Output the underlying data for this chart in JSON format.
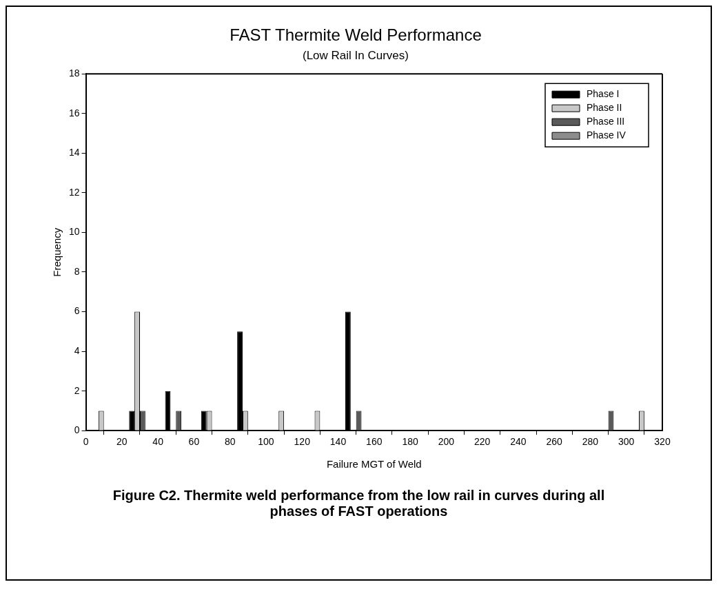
{
  "chart_data": {
    "type": "bar",
    "title": "FAST Thermite Weld Performance",
    "subtitle": "(Low Rail In Curves)",
    "xlabel": "Failure MGT of Weld",
    "ylabel": "Frequency",
    "x": [
      10,
      30,
      50,
      70,
      90,
      110,
      130,
      150,
      170,
      190,
      210,
      230,
      250,
      270,
      290,
      310
    ],
    "series": [
      {
        "name": "Phase I",
        "color": "#000000",
        "values": [
          0,
          1,
          2,
          1,
          5,
          0,
          0,
          6,
          0,
          0,
          0,
          0,
          0,
          0,
          0,
          0
        ]
      },
      {
        "name": "Phase II",
        "color": "#c8c8c8",
        "values": [
          1,
          6,
          0,
          1,
          1,
          1,
          1,
          0,
          0,
          0,
          0,
          0,
          0,
          0,
          0,
          1
        ]
      },
      {
        "name": "Phase III",
        "color": "#5a5a5a",
        "values": [
          0,
          1,
          1,
          0,
          0,
          0,
          0,
          1,
          0,
          0,
          0,
          0,
          0,
          0,
          1,
          0
        ]
      },
      {
        "name": "Phase IV",
        "color": "#8c8c8c",
        "values": [
          0,
          0,
          0,
          0,
          0,
          0,
          0,
          0,
          0,
          0,
          0,
          0,
          0,
          0,
          0,
          0
        ]
      }
    ],
    "xlim": [
      0,
      320
    ],
    "xticks": [
      0,
      20,
      40,
      60,
      80,
      100,
      120,
      140,
      160,
      180,
      200,
      220,
      240,
      260,
      280,
      300,
      320
    ],
    "ylim": [
      0,
      18
    ],
    "yticks": [
      0,
      2,
      4,
      6,
      8,
      10,
      12,
      14,
      16,
      18
    ],
    "grid": false,
    "legend": "top right",
    "annotations": [
      "Figure C2.  Thermite weld performance from the low rail in curves during all phases of FAST operations"
    ]
  }
}
